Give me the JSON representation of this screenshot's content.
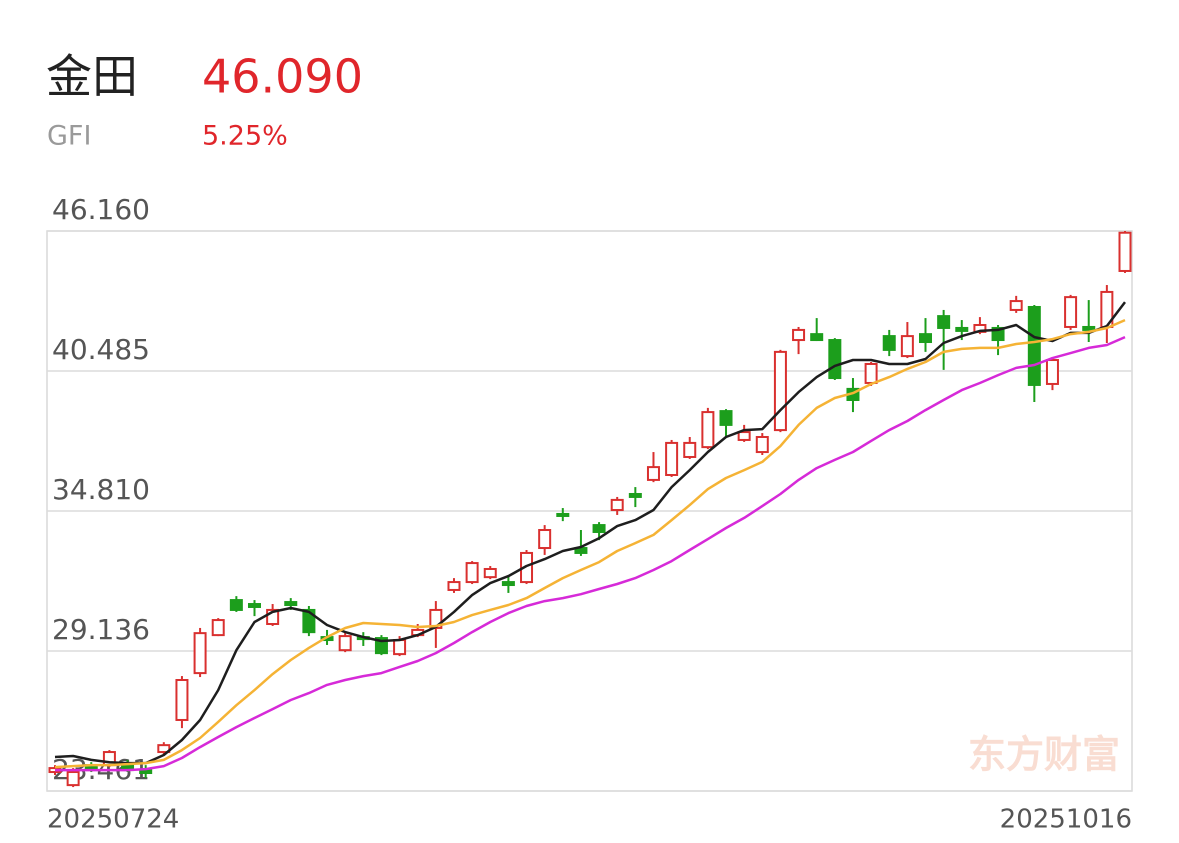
{
  "header": {
    "name": "金田",
    "price": "46.090",
    "symbol": "GFI",
    "change": "5.25%"
  },
  "watermark": "东方财富",
  "chart_data": {
    "type": "candlestick",
    "categories": [
      "20250724",
      null,
      null,
      null,
      null,
      null,
      null,
      null,
      null,
      null,
      null,
      null,
      null,
      null,
      null,
      null,
      null,
      null,
      null,
      null,
      null,
      null,
      null,
      null,
      null,
      null,
      null,
      null,
      null,
      null,
      null,
      null,
      null,
      null,
      null,
      null,
      null,
      null,
      null,
      null,
      null,
      null,
      null,
      null,
      null,
      null,
      null,
      null,
      null,
      null,
      null,
      null,
      null,
      null,
      null,
      null,
      null,
      null,
      null,
      "20251016"
    ],
    "open": [
      24.23,
      23.7,
      24.51,
      24.51,
      24.59,
      24.31,
      25.04,
      26.34,
      28.24,
      29.78,
      31.2,
      31.04,
      30.23,
      31.12,
      30.8,
      29.7,
      29.17,
      29.7,
      29.66,
      29.01,
      29.78,
      30.07,
      31.61,
      31.93,
      32.13,
      31.93,
      31.93,
      33.31,
      34.69,
      33.31,
      34.24,
      34.85,
      35.5,
      36.07,
      36.27,
      37.0,
      37.4,
      38.86,
      37.69,
      37.2,
      38.09,
      41.74,
      41.98,
      41.74,
      39.76,
      40.0,
      41.9,
      41.09,
      41.98,
      42.71,
      42.23,
      42.07,
      42.23,
      42.96,
      43.08,
      39.96,
      42.27,
      42.27,
      42.27,
      44.54
    ],
    "high": [
      24.51,
      24.39,
      24.63,
      25.12,
      24.72,
      24.51,
      25.44,
      28.12,
      30.07,
      30.47,
      31.36,
      31.2,
      31.04,
      31.28,
      30.96,
      29.99,
      29.9,
      29.9,
      29.78,
      29.74,
      30.23,
      31.16,
      32.09,
      32.78,
      32.58,
      32.21,
      33.23,
      34.24,
      34.93,
      34.04,
      34.36,
      35.38,
      35.78,
      37.2,
      37.69,
      37.81,
      38.99,
      38.94,
      38.3,
      37.97,
      41.34,
      42.27,
      42.63,
      41.82,
      40.2,
      40.85,
      42.15,
      42.47,
      42.63,
      42.96,
      42.55,
      42.67,
      42.35,
      43.53,
      43.16,
      41.05,
      43.57,
      43.36,
      43.97,
      46.16
    ],
    "low": [
      24.11,
      23.62,
      24.23,
      24.43,
      24.23,
      23.99,
      24.92,
      26.01,
      28.08,
      29.74,
      30.72,
      30.55,
      30.15,
      30.8,
      29.74,
      29.38,
      29.09,
      29.34,
      28.97,
      28.93,
      29.7,
      29.26,
      31.49,
      31.85,
      32.05,
      31.49,
      31.85,
      33.03,
      34.4,
      32.99,
      33.63,
      34.65,
      34.97,
      35.98,
      36.19,
      36.92,
      37.32,
      37.81,
      37.61,
      37.08,
      38.01,
      41.17,
      41.7,
      40.12,
      38.82,
      39.88,
      41.09,
      41.01,
      41.26,
      40.53,
      41.74,
      41.98,
      41.13,
      42.84,
      39.23,
      39.71,
      42.15,
      41.66,
      41.62,
      44.46
    ],
    "close": [
      24.39,
      24.23,
      24.39,
      25.04,
      24.31,
      24.19,
      25.32,
      27.96,
      29.86,
      30.39,
      30.8,
      30.92,
      30.8,
      31.0,
      29.9,
      29.58,
      29.74,
      29.62,
      29.05,
      29.58,
      29.99,
      30.8,
      31.93,
      32.7,
      32.46,
      31.81,
      33.11,
      34.04,
      34.61,
      33.11,
      33.96,
      35.26,
      35.38,
      36.59,
      37.57,
      37.57,
      38.82,
      38.3,
      38.01,
      37.81,
      41.26,
      42.15,
      41.74,
      40.2,
      39.31,
      40.77,
      41.34,
      41.9,
      41.66,
      42.23,
      42.11,
      42.35,
      41.74,
      43.32,
      39.92,
      40.93,
      43.48,
      42.15,
      43.69,
      46.09
    ],
    "up_color": "#d9302f",
    "down_color": "#1c9e1c",
    "lines": [
      {
        "color": "#1e1e1e",
        "values": [
          24.84,
          24.88,
          24.72,
          24.63,
          24.59,
          24.59,
          24.92,
          25.53,
          26.34,
          27.55,
          29.17,
          30.31,
          30.72,
          30.88,
          30.72,
          30.19,
          29.9,
          29.7,
          29.54,
          29.58,
          29.78,
          30.11,
          30.72,
          31.4,
          31.89,
          32.17,
          32.58,
          32.86,
          33.19,
          33.35,
          33.71,
          34.2,
          34.44,
          34.85,
          35.78,
          36.47,
          37.2,
          37.81,
          38.09,
          38.13,
          38.9,
          39.63,
          40.24,
          40.69,
          40.93,
          40.93,
          40.77,
          40.77,
          40.97,
          41.62,
          41.9,
          42.11,
          42.15,
          42.35,
          41.86,
          41.7,
          42.03,
          42.03,
          42.31,
          43.28
        ]
      },
      {
        "color": "#f5b335",
        "values": [
          24.43,
          24.47,
          24.51,
          24.51,
          24.55,
          24.59,
          24.72,
          25.12,
          25.61,
          26.26,
          26.94,
          27.55,
          28.2,
          28.77,
          29.26,
          29.7,
          30.07,
          30.27,
          30.23,
          30.19,
          30.11,
          30.15,
          30.31,
          30.59,
          30.8,
          31.0,
          31.28,
          31.69,
          32.09,
          32.42,
          32.74,
          33.19,
          33.51,
          33.84,
          34.44,
          35.05,
          35.7,
          36.15,
          36.47,
          36.8,
          37.44,
          38.3,
          38.99,
          39.39,
          39.59,
          39.96,
          40.24,
          40.57,
          40.85,
          41.26,
          41.38,
          41.42,
          41.42,
          41.58,
          41.66,
          41.78,
          41.98,
          42.07,
          42.23,
          42.55
        ]
      },
      {
        "color": "#d62ad8",
        "values": [
          24.31,
          24.31,
          24.31,
          24.31,
          24.31,
          24.35,
          24.47,
          24.8,
          25.24,
          25.65,
          26.05,
          26.42,
          26.78,
          27.15,
          27.43,
          27.76,
          27.96,
          28.12,
          28.24,
          28.49,
          28.73,
          29.05,
          29.46,
          29.9,
          30.31,
          30.67,
          30.96,
          31.16,
          31.28,
          31.44,
          31.65,
          31.85,
          32.09,
          32.42,
          32.78,
          33.23,
          33.67,
          34.12,
          34.53,
          35.01,
          35.5,
          36.07,
          36.55,
          36.88,
          37.2,
          37.65,
          38.09,
          38.46,
          38.9,
          39.31,
          39.71,
          40.0,
          40.32,
          40.61,
          40.73,
          41.01,
          41.21,
          41.42,
          41.54,
          41.86
        ]
      }
    ],
    "ylim": [
      23.461,
      46.16
    ],
    "yticks": [
      23.461,
      29.136,
      {
        "value": 34.81,
        "label": "34.810"
      },
      40.485,
      {
        "value": 46.16,
        "label": "46.160"
      }
    ],
    "grid": true
  }
}
